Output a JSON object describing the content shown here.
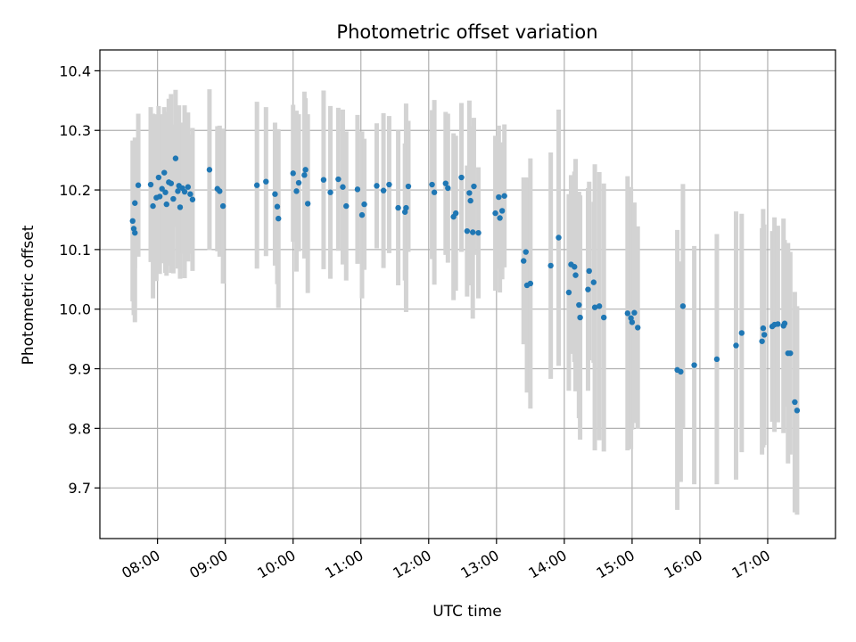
{
  "chart_data": {
    "type": "scatter",
    "title": "Photometric offset variation",
    "xlabel": "UTC time",
    "ylabel": "Photometric offset",
    "x_ticks": [
      "08:00",
      "09:00",
      "10:00",
      "11:00",
      "12:00",
      "13:00",
      "14:00",
      "15:00",
      "16:00",
      "17:00"
    ],
    "y_ticks": [
      "9.7",
      "9.8",
      "9.9",
      "10.0",
      "10.1",
      "10.2",
      "10.3",
      "10.4"
    ],
    "xlim": [
      "07:09",
      "18:00"
    ],
    "ylim": [
      9.615,
      10.435
    ],
    "grid": true,
    "point_color": "#1f77b4",
    "errorbar_color": "#d3d3d3",
    "series": [
      {
        "points": [
          {
            "x": "07:38",
            "y": 10.148,
            "err": 0.135
          },
          {
            "x": "07:39",
            "y": 10.135,
            "err": 0.145
          },
          {
            "x": "07:40",
            "y": 10.128,
            "err": 0.15
          },
          {
            "x": "07:40",
            "y": 10.178,
            "err": 0.11
          },
          {
            "x": "07:43",
            "y": 10.208,
            "err": 0.12
          },
          {
            "x": "07:54",
            "y": 10.209,
            "err": 0.13
          },
          {
            "x": "07:56",
            "y": 10.173,
            "err": 0.155
          },
          {
            "x": "07:59",
            "y": 10.187,
            "err": 0.14
          },
          {
            "x": "08:01",
            "y": 10.221,
            "err": 0.12
          },
          {
            "x": "08:02",
            "y": 10.189,
            "err": 0.13
          },
          {
            "x": "08:04",
            "y": 10.202,
            "err": 0.125
          },
          {
            "x": "08:06",
            "y": 10.229,
            "err": 0.11
          },
          {
            "x": "08:07",
            "y": 10.196,
            "err": 0.135
          },
          {
            "x": "08:08",
            "y": 10.176,
            "err": 0.12
          },
          {
            "x": "08:10",
            "y": 10.213,
            "err": 0.14
          },
          {
            "x": "08:12",
            "y": 10.211,
            "err": 0.15
          },
          {
            "x": "08:14",
            "y": 10.185,
            "err": 0.125
          },
          {
            "x": "08:16",
            "y": 10.253,
            "err": 0.115
          },
          {
            "x": "08:18",
            "y": 10.198,
            "err": 0.13
          },
          {
            "x": "08:19",
            "y": 10.207,
            "err": 0.135
          },
          {
            "x": "08:20",
            "y": 10.171,
            "err": 0.12
          },
          {
            "x": "08:22",
            "y": 10.203,
            "err": 0.11
          },
          {
            "x": "08:24",
            "y": 10.197,
            "err": 0.145
          },
          {
            "x": "08:27",
            "y": 10.205,
            "err": 0.125
          },
          {
            "x": "08:29",
            "y": 10.193,
            "err": 0.1
          },
          {
            "x": "08:31",
            "y": 10.184,
            "err": 0.12
          },
          {
            "x": "08:46",
            "y": 10.234,
            "err": 0.135
          },
          {
            "x": "08:53",
            "y": 10.202,
            "err": 0.105
          },
          {
            "x": "08:55",
            "y": 10.198,
            "err": 0.11
          },
          {
            "x": "08:58",
            "y": 10.173,
            "err": 0.13
          },
          {
            "x": "09:28",
            "y": 10.208,
            "err": 0.14
          },
          {
            "x": "09:36",
            "y": 10.214,
            "err": 0.125
          },
          {
            "x": "09:44",
            "y": 10.193,
            "err": 0.12
          },
          {
            "x": "09:46",
            "y": 10.172,
            "err": 0.13
          },
          {
            "x": "09:47",
            "y": 10.152,
            "err": 0.15
          },
          {
            "x": "10:00",
            "y": 10.228,
            "err": 0.115
          },
          {
            "x": "10:03",
            "y": 10.198,
            "err": 0.135
          },
          {
            "x": "10:05",
            "y": 10.212,
            "err": 0.115
          },
          {
            "x": "10:10",
            "y": 10.225,
            "err": 0.14
          },
          {
            "x": "10:11",
            "y": 10.234,
            "err": 0.12
          },
          {
            "x": "10:13",
            "y": 10.177,
            "err": 0.15
          },
          {
            "x": "10:27",
            "y": 10.217,
            "err": 0.15
          },
          {
            "x": "10:33",
            "y": 10.196,
            "err": 0.145
          },
          {
            "x": "10:40",
            "y": 10.218,
            "err": 0.12
          },
          {
            "x": "10:44",
            "y": 10.205,
            "err": 0.13
          },
          {
            "x": "10:47",
            "y": 10.173,
            "err": 0.125
          },
          {
            "x": "10:57",
            "y": 10.201,
            "err": 0.125
          },
          {
            "x": "11:01",
            "y": 10.158,
            "err": 0.14
          },
          {
            "x": "11:03",
            "y": 10.176,
            "err": 0.11
          },
          {
            "x": "11:14",
            "y": 10.207,
            "err": 0.105
          },
          {
            "x": "11:20",
            "y": 10.199,
            "err": 0.13
          },
          {
            "x": "11:25",
            "y": 10.209,
            "err": 0.115
          },
          {
            "x": "11:33",
            "y": 10.17,
            "err": 0.13
          },
          {
            "x": "11:39",
            "y": 10.163,
            "err": 0.115
          },
          {
            "x": "11:40",
            "y": 10.17,
            "err": 0.175
          },
          {
            "x": "11:42",
            "y": 10.206,
            "err": 0.11
          },
          {
            "x": "12:03",
            "y": 10.209,
            "err": 0.125
          },
          {
            "x": "12:05",
            "y": 10.196,
            "err": 0.155
          },
          {
            "x": "12:15",
            "y": 10.211,
            "err": 0.12
          },
          {
            "x": "12:17",
            "y": 10.203,
            "err": 0.125
          },
          {
            "x": "12:22",
            "y": 10.155,
            "err": 0.14
          },
          {
            "x": "12:24",
            "y": 10.161,
            "err": 0.13
          },
          {
            "x": "12:29",
            "y": 10.221,
            "err": 0.125
          },
          {
            "x": "12:34",
            "y": 10.131,
            "err": 0.11
          },
          {
            "x": "12:36",
            "y": 10.195,
            "err": 0.155
          },
          {
            "x": "12:37",
            "y": 10.182,
            "err": 0.125
          },
          {
            "x": "12:39",
            "y": 10.129,
            "err": 0.145
          },
          {
            "x": "12:40",
            "y": 10.206,
            "err": 0.115
          },
          {
            "x": "12:44",
            "y": 10.128,
            "err": 0.11
          },
          {
            "x": "12:59",
            "y": 10.161,
            "err": 0.13
          },
          {
            "x": "13:02",
            "y": 10.188,
            "err": 0.12
          },
          {
            "x": "13:03",
            "y": 10.153,
            "err": 0.125
          },
          {
            "x": "13:05",
            "y": 10.165,
            "err": 0.115
          },
          {
            "x": "13:07",
            "y": 10.19,
            "err": 0.12
          },
          {
            "x": "13:24",
            "y": 10.081,
            "err": 0.14
          },
          {
            "x": "13:26",
            "y": 10.096,
            "err": 0.125
          },
          {
            "x": "13:27",
            "y": 10.04,
            "err": 0.18
          },
          {
            "x": "13:30",
            "y": 10.043,
            "err": 0.21
          },
          {
            "x": "13:48",
            "y": 10.073,
            "err": 0.19
          },
          {
            "x": "13:55",
            "y": 10.12,
            "err": 0.215
          },
          {
            "x": "14:04",
            "y": 10.028,
            "err": 0.165
          },
          {
            "x": "14:06",
            "y": 10.075,
            "err": 0.15
          },
          {
            "x": "14:09",
            "y": 10.071,
            "err": 0.16
          },
          {
            "x": "14:10",
            "y": 10.057,
            "err": 0.195
          },
          {
            "x": "14:13",
            "y": 10.007,
            "err": 0.19
          },
          {
            "x": "14:14",
            "y": 9.986,
            "err": 0.205
          },
          {
            "x": "14:21",
            "y": 10.033,
            "err": 0.17
          },
          {
            "x": "14:22",
            "y": 10.064,
            "err": 0.15
          },
          {
            "x": "14:26",
            "y": 10.045,
            "err": 0.135
          },
          {
            "x": "14:27",
            "y": 10.003,
            "err": 0.24
          },
          {
            "x": "14:31",
            "y": 10.005,
            "err": 0.225
          },
          {
            "x": "14:35",
            "y": 9.986,
            "err": 0.225
          },
          {
            "x": "14:56",
            "y": 9.993,
            "err": 0.23
          },
          {
            "x": "14:59",
            "y": 9.985,
            "err": 0.22
          },
          {
            "x": "15:00",
            "y": 9.978,
            "err": 0.18
          },
          {
            "x": "15:02",
            "y": 9.994,
            "err": 0.185
          },
          {
            "x": "15:05",
            "y": 9.969,
            "err": 0.17
          },
          {
            "x": "15:40",
            "y": 9.898,
            "err": 0.235
          },
          {
            "x": "15:43",
            "y": 9.895,
            "err": 0.185
          },
          {
            "x": "15:45",
            "y": 10.005,
            "err": 0.205
          },
          {
            "x": "15:55",
            "y": 9.906,
            "err": 0.2
          },
          {
            "x": "16:15",
            "y": 9.916,
            "err": 0.21
          },
          {
            "x": "16:32",
            "y": 9.939,
            "err": 0.225
          },
          {
            "x": "16:37",
            "y": 9.96,
            "err": 0.2
          },
          {
            "x": "16:55",
            "y": 9.946,
            "err": 0.19
          },
          {
            "x": "16:56",
            "y": 9.968,
            "err": 0.2
          },
          {
            "x": "16:57",
            "y": 9.957,
            "err": 0.185
          },
          {
            "x": "17:04",
            "y": 9.971,
            "err": 0.16
          },
          {
            "x": "17:06",
            "y": 9.974,
            "err": 0.18
          },
          {
            "x": "17:09",
            "y": 9.975,
            "err": 0.165
          },
          {
            "x": "17:14",
            "y": 9.972,
            "err": 0.18
          },
          {
            "x": "17:15",
            "y": 9.976,
            "err": 0.14
          },
          {
            "x": "17:18",
            "y": 9.926,
            "err": 0.185
          },
          {
            "x": "17:20",
            "y": 9.926,
            "err": 0.17
          },
          {
            "x": "17:24",
            "y": 9.844,
            "err": 0.185
          },
          {
            "x": "17:26",
            "y": 9.83,
            "err": 0.175
          }
        ]
      }
    ]
  }
}
